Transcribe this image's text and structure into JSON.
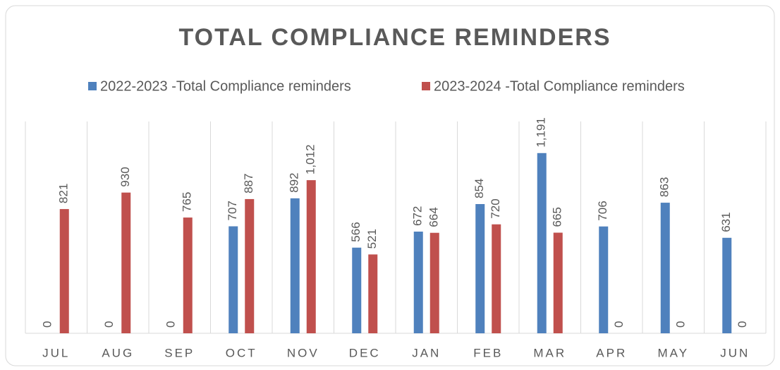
{
  "chart_data": {
    "type": "bar",
    "title": "TOTAL COMPLIANCE REMINDERS",
    "categories": [
      "JUL",
      "AUG",
      "SEP",
      "OCT",
      "NOV",
      "DEC",
      "JAN",
      "FEB",
      "MAR",
      "APR",
      "MAY",
      "JUN"
    ],
    "series": [
      {
        "name": "2022-2023 -Total Compliance reminders",
        "color": "#4f81bd",
        "values": [
          0,
          0,
          0,
          707,
          892,
          566,
          672,
          854,
          1191,
          706,
          863,
          631
        ],
        "value_labels": [
          "0",
          "0",
          "0",
          "707",
          "892",
          "566",
          "672",
          "854",
          "1,191",
          "706",
          "863",
          "631"
        ]
      },
      {
        "name": "2023-2024 -Total Compliance reminders",
        "color": "#c0504d",
        "values": [
          821,
          930,
          765,
          887,
          1012,
          521,
          664,
          720,
          665,
          0,
          0,
          0
        ],
        "value_labels": [
          "821",
          "930",
          "765",
          "887",
          "1,012",
          "521",
          "664",
          "720",
          "665",
          "0",
          "0",
          "0"
        ]
      }
    ],
    "ylim": [
      0,
      1400
    ],
    "grid": true,
    "legend": "top"
  }
}
